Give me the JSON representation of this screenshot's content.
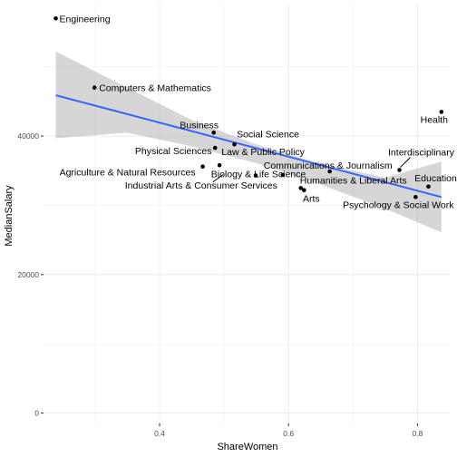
{
  "chart_data": {
    "type": "scatter",
    "title": "",
    "xlabel": "ShareWomen",
    "ylabel": "MedianSalary",
    "xlim": [
      0.22,
      0.85
    ],
    "ylim": [
      -1500,
      59000
    ],
    "x_ticks": [
      0.4,
      0.6,
      0.8
    ],
    "x_tick_labels": [
      "0.4",
      "0.6",
      "0.8"
    ],
    "y_ticks": [
      0,
      20000,
      40000
    ],
    "y_tick_labels": [
      "0",
      "20000",
      "40000"
    ],
    "grid": true,
    "points": [
      {
        "label": "Engineering",
        "x": 0.239,
        "y": 57000
      },
      {
        "label": "Computers & Mathematics",
        "x": 0.299,
        "y": 47000
      },
      {
        "label": "Business",
        "x": 0.484,
        "y": 40500
      },
      {
        "label": "Social Science",
        "x": 0.516,
        "y": 38800
      },
      {
        "label": "Physical Sciences",
        "x": 0.486,
        "y": 38300
      },
      {
        "label": "Law & Public Policy",
        "x": 0.493,
        "y": 35800
      },
      {
        "label": "Agriculture & Natural Resources",
        "x": 0.467,
        "y": 35600
      },
      {
        "label": "Biology & Life Science",
        "x": 0.549,
        "y": 34300
      },
      {
        "label": "Industrial Arts & Consumer Services",
        "x": 0.591,
        "y": 34400
      },
      {
        "label": "Communications & Journalism",
        "x": 0.664,
        "y": 34900
      },
      {
        "label": "Humanities & Liberal Arts",
        "x": 0.619,
        "y": 32500
      },
      {
        "label": "Arts",
        "x": 0.624,
        "y": 32200
      },
      {
        "label": "Interdisciplinary",
        "x": 0.772,
        "y": 35100
      },
      {
        "label": "Health",
        "x": 0.837,
        "y": 43500
      },
      {
        "label": "Education",
        "x": 0.817,
        "y": 32700
      },
      {
        "label": "Psychology & Social Work",
        "x": 0.797,
        "y": 31200
      }
    ],
    "trend": {
      "method": "linear",
      "start": {
        "x": 0.239,
        "y": 45900
      },
      "end": {
        "x": 0.837,
        "y": 31200
      },
      "ci": [
        {
          "x": 0.239,
          "lower": 39700,
          "upper": 52200
        },
        {
          "x": 0.35,
          "lower": 40500,
          "upper": 47000
        },
        {
          "x": 0.45,
          "lower": 38500,
          "upper": 42300
        },
        {
          "x": 0.55,
          "lower": 36100,
          "upper": 38800
        },
        {
          "x": 0.65,
          "lower": 33000,
          "upper": 36000
        },
        {
          "x": 0.75,
          "lower": 29500,
          "upper": 34000
        },
        {
          "x": 0.837,
          "lower": 26100,
          "upper": 36300
        }
      ]
    },
    "colors": {
      "trend_line": "#3366FF",
      "ci_band": "#999999",
      "points": "#000000",
      "grid": "#ebebeb"
    }
  }
}
